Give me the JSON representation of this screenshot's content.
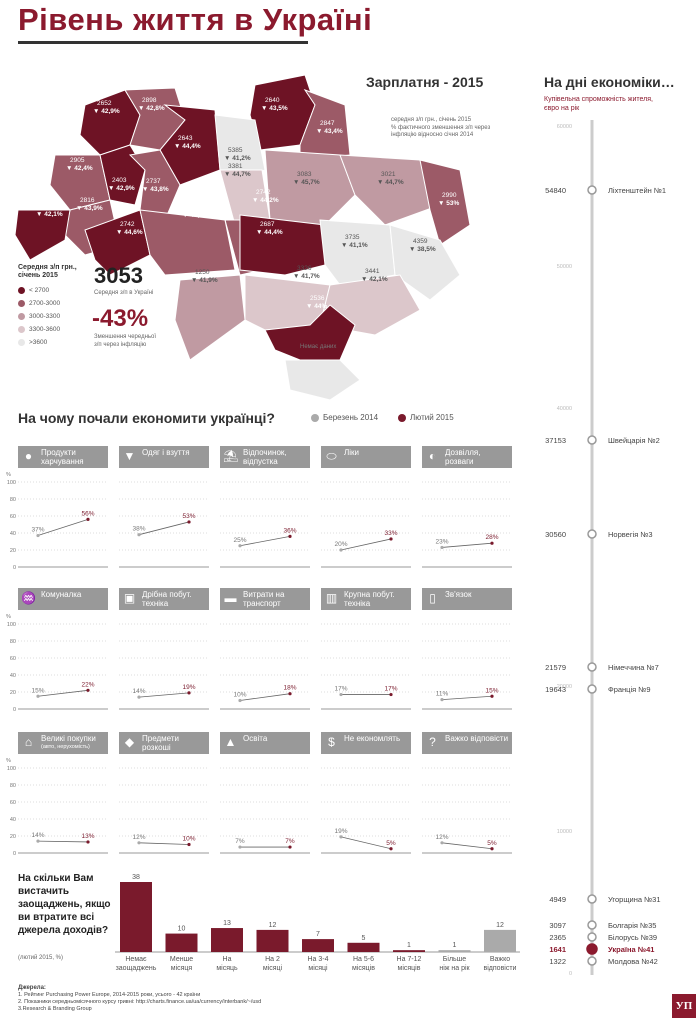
{
  "title": "Рівень життя в Україні",
  "salary": {
    "heading": "Зарплатня - 2015",
    "legend_title": "Середня з/п грн.,\nсічень 2015",
    "legend_items": [
      {
        "label": "< 2700",
        "color": "#6e1325"
      },
      {
        "label": "2700-3000",
        "color": "#9c5a67"
      },
      {
        "label": "3000-3300",
        "color": "#c09aa2"
      },
      {
        "label": "3300-3600",
        "color": "#dcc7cb"
      },
      {
        "label": ">3600",
        "color": "#e8e8e8"
      }
    ],
    "big_value": "3053",
    "big_value_caption": "Середня з/п в Україні",
    "big_drop": "-43%",
    "big_drop_caption": "Зменшення чередньої\nз/п через інфляцію",
    "note_line1": "середня з/п грн., січень 2015",
    "note_line2": "% фактичного зменшення з/п через\nінфляцію відносно січня 2014",
    "no_data": "Немає даних",
    "regions": [
      {
        "v": "2652",
        "p": "▼ 42,9%"
      },
      {
        "v": "2898",
        "p": "▼ 42,8%"
      },
      {
        "v": "2640",
        "p": "▼ 43,5%"
      },
      {
        "v": "2847",
        "p": "▼ 43,4%"
      },
      {
        "v": "2643",
        "p": "▼ 44,4%"
      },
      {
        "v": "5385",
        "p": "▼ 41,2%"
      },
      {
        "v": "2905",
        "p": "▼ 42,4%"
      },
      {
        "v": "2403",
        "p": "▼ 42,9%"
      },
      {
        "v": "2737",
        "p": "▼ 43,8%"
      },
      {
        "v": "3381",
        "p": "▼ 44,7%"
      },
      {
        "v": "3083",
        "p": "▼ 45,7%"
      },
      {
        "v": "3021",
        "p": "▼ 44,7%"
      },
      {
        "v": "2816",
        "p": "▼ 43,9%"
      },
      {
        "v": "2742",
        "p": "▼ 44,2%"
      },
      {
        "v": "2990",
        "p": "▼ 53%"
      },
      {
        "v": "2643",
        "p": "▼ 42,1%"
      },
      {
        "v": "2742",
        "p": "▼ 44,6%"
      },
      {
        "v": "2732",
        "p": "▼ 43,7%"
      },
      {
        "v": "2687",
        "p": "▼ 44,4%"
      },
      {
        "v": "3735",
        "p": "▼ 41,1%"
      },
      {
        "v": "4359",
        "p": "▼ 38,5%"
      },
      {
        "v": "1250",
        "p": "▼ 41,9%"
      },
      {
        "v": "3326",
        "p": "▼ 41,7%"
      },
      {
        "v": "3441",
        "p": "▼ 42,1%"
      },
      {
        "v": "2536",
        "p": "▼ 44%"
      }
    ]
  },
  "economy": {
    "heading": "На дні економіки…",
    "subtitle": "Купівельна спроможність жителя,\nєвро на рік",
    "axis_ticks": [
      "60000",
      "50000",
      "40000",
      "20000",
      "10000",
      "0"
    ],
    "countries": [
      {
        "value": "54840",
        "label": "Ліхтенштейн №1"
      },
      {
        "value": "37153",
        "label": "Швейцарія №2"
      },
      {
        "value": "30560",
        "label": "Норвегія №3"
      },
      {
        "value": "21579",
        "label": "Німеччина №7"
      },
      {
        "value": "19643",
        "label": "Франція №9"
      },
      {
        "value": "4949",
        "label": "Угорщина №31"
      },
      {
        "value": "3097",
        "label": "Болгарія №35"
      },
      {
        "value": "2365",
        "label": "Білорусь №39"
      },
      {
        "value": "1641",
        "label": "Україна №41"
      },
      {
        "value": "1322",
        "label": "Молдова №42"
      }
    ]
  },
  "savings": {
    "heading": "На чому почали економити українці?",
    "legend_a": "Березень 2014",
    "legend_b": "Лютий 2015",
    "color_a": "#aaaaaa",
    "color_b": "#7a1a2c",
    "axis_unit": "%",
    "axis_ticks": [
      "100",
      "80",
      "60",
      "40",
      "20",
      "0"
    ]
  },
  "chart_data": [
    {
      "type": "line",
      "title": "На чому почали економити українці?",
      "x": [
        "Березень 2014",
        "Лютий 2015"
      ],
      "ylim": [
        0,
        100
      ],
      "series": [
        {
          "name": "Продукти харчування",
          "values": [
            37,
            56
          ],
          "labels": [
            "37%",
            "56%"
          ]
        },
        {
          "name": "Одяг і взуття",
          "values": [
            38,
            53
          ],
          "labels": [
            "38%",
            "53%"
          ]
        },
        {
          "name": "Відпочинок, відпустка",
          "values": [
            25,
            36
          ],
          "labels": [
            "25%",
            "36%"
          ]
        },
        {
          "name": "Ліки",
          "values": [
            20,
            33
          ],
          "labels": [
            "20%",
            "33%"
          ]
        },
        {
          "name": "Дозвілля, розваги",
          "values": [
            23,
            28
          ],
          "labels": [
            "23%",
            "28%"
          ]
        },
        {
          "name": "Комуналка",
          "values": [
            15,
            22
          ],
          "labels": [
            "15%",
            "22%"
          ]
        },
        {
          "name": "Дрібна побут. техніка",
          "values": [
            14,
            19
          ],
          "labels": [
            "14%",
            "19%"
          ]
        },
        {
          "name": "Витрати на транспорт",
          "values": [
            10,
            18
          ],
          "labels": [
            "10%",
            "18%"
          ]
        },
        {
          "name": "Крупна побут. техніка",
          "values": [
            17,
            17
          ],
          "labels": [
            "17%",
            "17%"
          ]
        },
        {
          "name": "Зв'язок",
          "values": [
            11,
            15
          ],
          "labels": [
            "11%",
            "15%"
          ]
        },
        {
          "name": "Великі покупки",
          "sub": "(авто, нерухомість)",
          "values": [
            14,
            13
          ],
          "labels": [
            "14%",
            "13%"
          ]
        },
        {
          "name": "Предмети розкоші",
          "values": [
            12,
            10
          ],
          "labels": [
            "12%",
            "10%"
          ]
        },
        {
          "name": "Освіта",
          "values": [
            7,
            7
          ],
          "labels": [
            "7%",
            "7%"
          ]
        },
        {
          "name": "Не економлять",
          "values": [
            19,
            5
          ],
          "labels": [
            "19%",
            "5%"
          ]
        },
        {
          "name": "Важко відповісти",
          "values": [
            12,
            5
          ],
          "labels": [
            "12%",
            "5%"
          ]
        }
      ]
    },
    {
      "type": "bar",
      "title": "На скільки Вам вистачить заощаджень, якщо ви втратите всі джерела доходів?",
      "subtitle": "(лютий 2015, %)",
      "categories": [
        "Немає заощаджень",
        "Менше місяця",
        "На місяць",
        "На 2 місяці",
        "На 3-4 місяці",
        "На 5-6 місяців",
        "На 7-12 місяців",
        "Більше ніж на рік",
        "Важко відповісти"
      ],
      "values": [
        38,
        10,
        13,
        12,
        7,
        5,
        1,
        1,
        12
      ],
      "colors": [
        "#7a1a2c",
        "#7a1a2c",
        "#7a1a2c",
        "#7a1a2c",
        "#7a1a2c",
        "#7a1a2c",
        "#7a1a2c",
        "#aaaaaa",
        "#aaaaaa"
      ]
    }
  ],
  "survival": {
    "question": "На скільки Вам вистачить заощаджень, якщо ви втратите всі джерела доходів?",
    "sub": "(лютий 2015, %)"
  },
  "sources": {
    "heading": "Джерела:",
    "lines": [
      "1. Рейтинг Purchasing Power Europe, 2014-2015 роки, усього - 42 країни",
      "2. Показники середньомісячного курсу гривні: http://charts.finance.ua/ua/currency/interbank/~/usd",
      "3.Research & Branding Group"
    ]
  },
  "logo": "УП",
  "icons": [
    "apple-icon",
    "shirt-icon",
    "beach-icon",
    "pill-icon",
    "dining-icon",
    "faucet-icon",
    "camera-icon",
    "car-icon",
    "fridge-icon",
    "phone-icon",
    "house-icon",
    "diamond-icon",
    "graduation-cap-icon",
    "dollar-icon",
    "question-icon"
  ]
}
